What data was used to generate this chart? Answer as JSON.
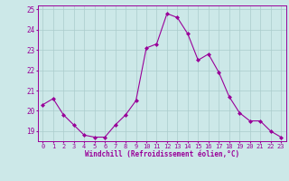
{
  "x": [
    0,
    1,
    2,
    3,
    4,
    5,
    6,
    7,
    8,
    9,
    10,
    11,
    12,
    13,
    14,
    15,
    16,
    17,
    18,
    19,
    20,
    21,
    22,
    23
  ],
  "y": [
    20.3,
    20.6,
    19.8,
    19.3,
    18.8,
    18.7,
    18.7,
    19.3,
    19.8,
    20.5,
    23.1,
    23.3,
    24.8,
    24.6,
    23.8,
    22.5,
    22.8,
    21.9,
    20.7,
    19.9,
    19.5,
    19.5,
    19.0,
    18.7
  ],
  "line_color": "#990099",
  "marker": "D",
  "marker_size": 2,
  "bg_color": "#cce8e8",
  "grid_color": "#aacccc",
  "xlabel": "Windchill (Refroidissement éolien,°C)",
  "xlim": [
    -0.5,
    23.5
  ],
  "ylim": [
    18.5,
    25.2
  ],
  "yticks": [
    19,
    20,
    21,
    22,
    23,
    24,
    25
  ],
  "xticks": [
    0,
    1,
    2,
    3,
    4,
    5,
    6,
    7,
    8,
    9,
    10,
    11,
    12,
    13,
    14,
    15,
    16,
    17,
    18,
    19,
    20,
    21,
    22,
    23
  ],
  "tick_color": "#990099",
  "label_color": "#990099",
  "spine_color": "#990099",
  "tick_fontsize": 5.0,
  "xlabel_fontsize": 5.5
}
